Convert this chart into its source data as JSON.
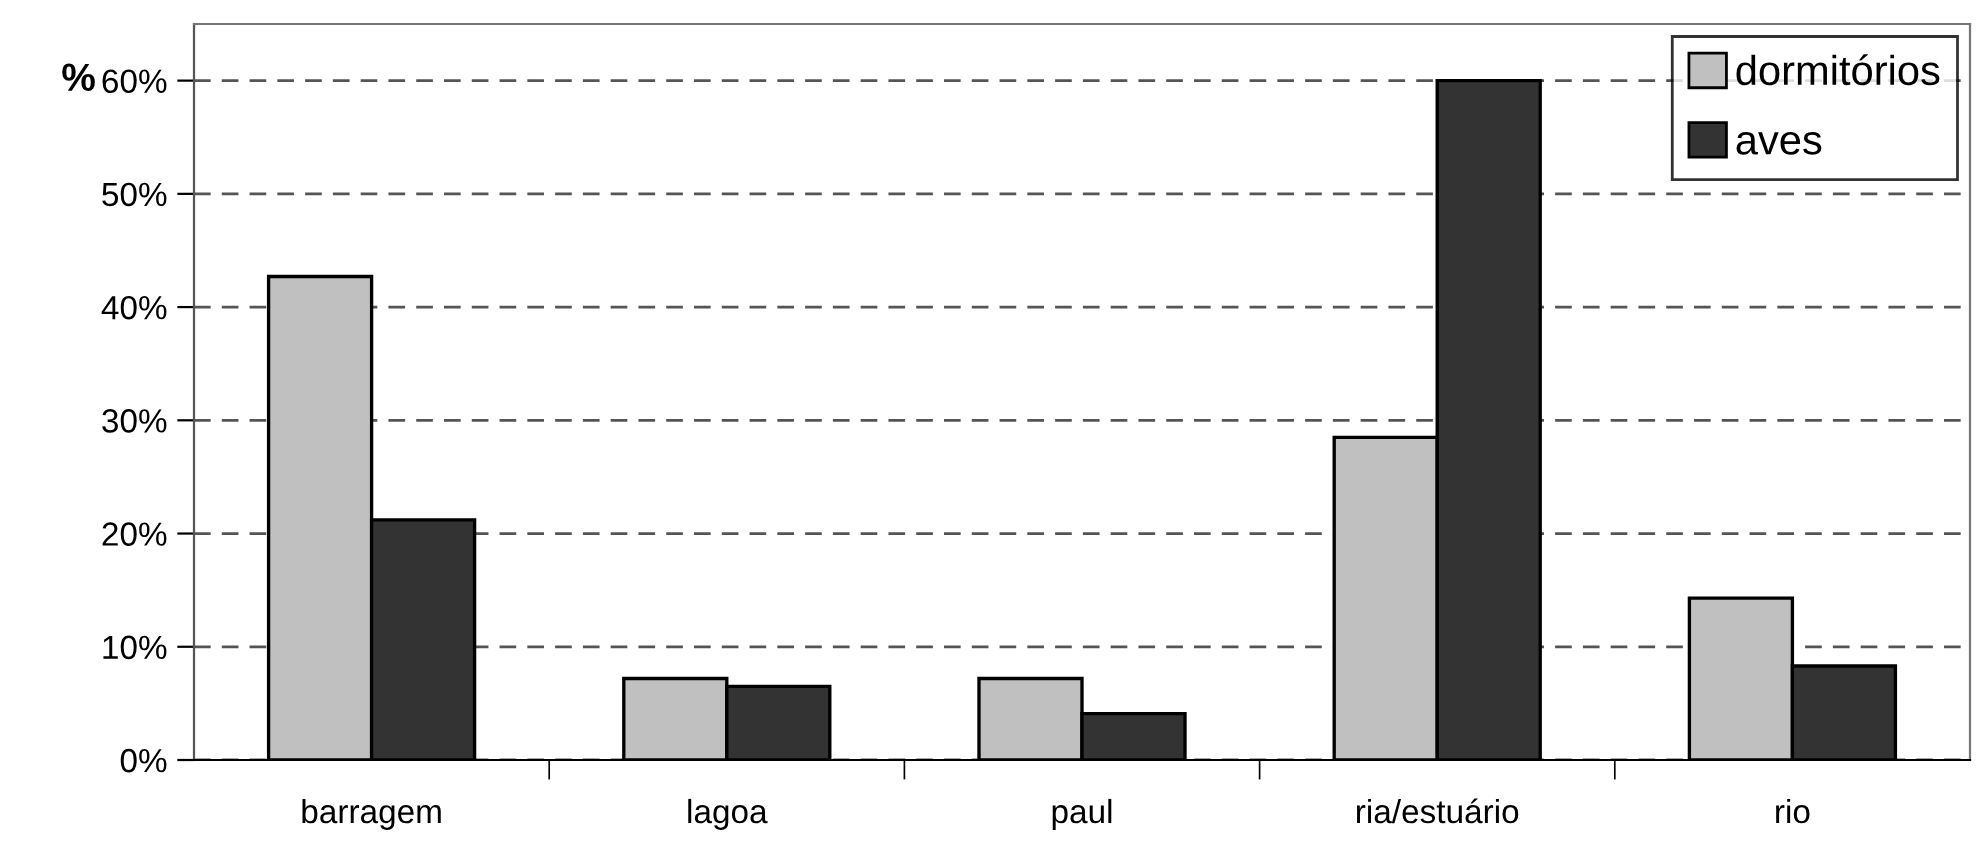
{
  "chart_data": {
    "type": "bar",
    "ylabel": "%",
    "categories": [
      "barragem",
      "lagoa",
      "paul",
      "ria/estuário",
      "rio"
    ],
    "series": [
      {
        "name": "dormitórios",
        "color": "#c0c0c0",
        "values": [
          42.7,
          7.2,
          7.2,
          28.5,
          14.3
        ]
      },
      {
        "name": "aves",
        "color": "#333333",
        "values": [
          21.2,
          6.5,
          4.1,
          60,
          8.3
        ]
      }
    ],
    "ylim": [
      0,
      65
    ],
    "yticks": [
      {
        "value": 0,
        "label": "0%"
      },
      {
        "value": 10,
        "label": "10%"
      },
      {
        "value": 20,
        "label": "20%"
      },
      {
        "value": 30,
        "label": "30%"
      },
      {
        "value": 40,
        "label": "40%"
      },
      {
        "value": 50,
        "label": "50%"
      },
      {
        "value": 60,
        "label": "60%"
      }
    ],
    "grid": "y",
    "legend": "top right"
  }
}
